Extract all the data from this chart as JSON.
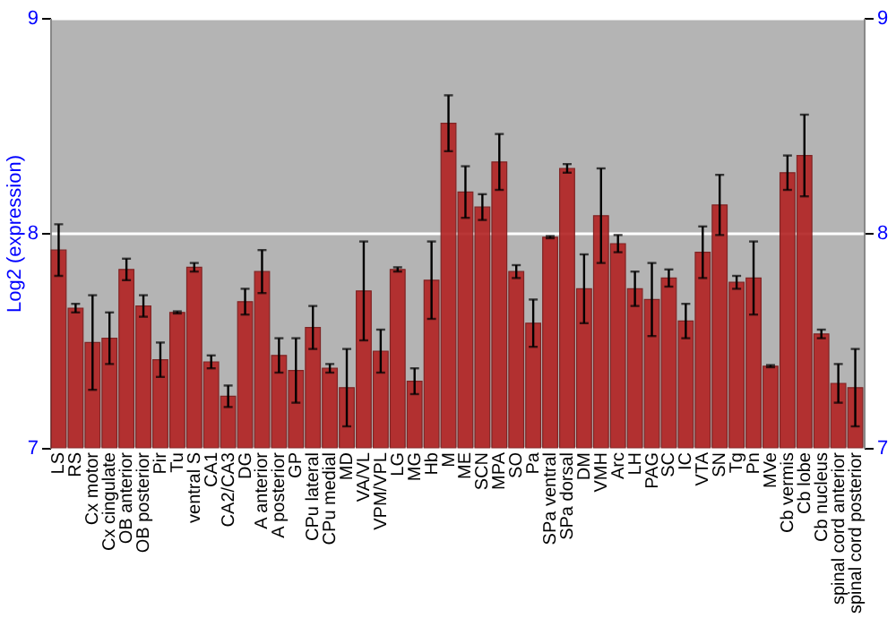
{
  "chart_data": {
    "type": "bar",
    "ylabel": "Log2 (expression)",
    "categories": [
      "LS",
      "RS",
      "Cx motor",
      "Cx cingulate",
      "OB anterior",
      "OB posterior",
      "Pir",
      "Tu",
      "ventral S",
      "CA1",
      "CA2/CA3",
      "DG",
      "A anterior",
      "A posterior",
      "GP",
      "CPu lateral",
      "CPu medial",
      "MD",
      "VA/VL",
      "VPM/VPL",
      "LG",
      "MG",
      "Hb",
      "M",
      "ME",
      "SCN",
      "MPA",
      "SO",
      "Pa",
      "SPa ventral",
      "SPa dorsal",
      "DM",
      "VMH",
      "Arc",
      "LH",
      "PAG",
      "SC",
      "IC",
      "VTA",
      "SN",
      "Tg",
      "Pn",
      "MVe",
      "Cb vermis",
      "Cb lobe",
      "Cb nucleus",
      "spinal cord anterior",
      "spinal cord posterior"
    ],
    "values": [
      7.92,
      7.65,
      7.49,
      7.51,
      7.83,
      7.66,
      7.41,
      7.63,
      7.84,
      7.4,
      7.24,
      7.68,
      7.82,
      7.43,
      7.36,
      7.56,
      7.37,
      7.28,
      7.73,
      7.45,
      7.83,
      7.31,
      7.78,
      8.51,
      8.19,
      8.12,
      8.33,
      7.82,
      7.58,
      7.98,
      8.3,
      7.74,
      8.08,
      7.95,
      7.74,
      7.69,
      7.79,
      7.59,
      7.91,
      8.13,
      7.77,
      7.79,
      7.38,
      8.28,
      8.36,
      7.53,
      7.3,
      7.28
    ],
    "errors": [
      0.12,
      0.02,
      0.22,
      0.12,
      0.05,
      0.05,
      0.08,
      0.005,
      0.02,
      0.03,
      0.05,
      0.06,
      0.1,
      0.08,
      0.15,
      0.1,
      0.02,
      0.18,
      0.23,
      0.1,
      0.01,
      0.06,
      0.18,
      0.13,
      0.12,
      0.06,
      0.13,
      0.03,
      0.11,
      0.005,
      0.02,
      0.16,
      0.22,
      0.04,
      0.08,
      0.17,
      0.04,
      0.08,
      0.12,
      0.14,
      0.03,
      0.17,
      0.005,
      0.08,
      0.19,
      0.02,
      0.09,
      0.18
    ],
    "color": "#b22222",
    "ylim": [
      7,
      9
    ],
    "yticks": [
      7,
      8,
      9
    ],
    "y2lim": [
      7,
      9
    ],
    "y2ticks": [
      7,
      8,
      9
    ],
    "grid": "y"
  }
}
